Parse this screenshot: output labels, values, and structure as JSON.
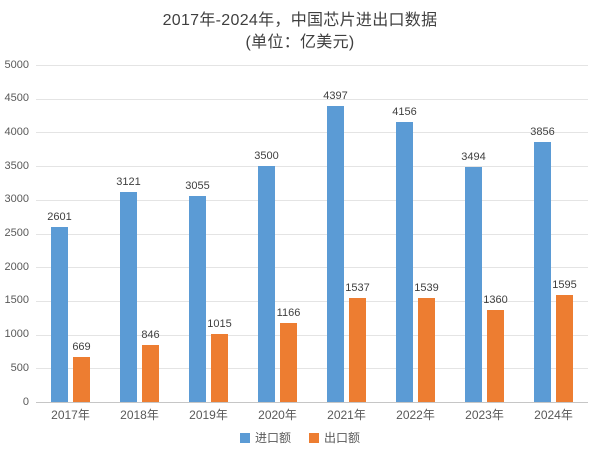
{
  "chart_data": {
    "type": "bar",
    "title": "2017年-2024年，中国芯片进出口数据",
    "subtitle": "(单位：亿美元)",
    "unit": "亿美元",
    "categories": [
      "2017年",
      "2018年",
      "2019年",
      "2020年",
      "2021年",
      "2022年",
      "2023年",
      "2024年"
    ],
    "series": [
      {
        "name": "进口额",
        "color": "#5B9BD5",
        "values": [
          2601,
          3121,
          3055,
          3500,
          4397,
          4156,
          3494,
          3856
        ]
      },
      {
        "name": "出口额",
        "color": "#ED7D31",
        "values": [
          669,
          846,
          1015,
          1166,
          1537,
          1539,
          1360,
          1595
        ]
      }
    ],
    "ylim": [
      0,
      5000
    ],
    "y_tick_step": 500,
    "grid": true,
    "legend_position": "bottom",
    "value_labels": true
  },
  "colors": {
    "import_blue": "#5B9BD5",
    "export_orange": "#ED7D31",
    "gridline": "#E4E4E4",
    "axis_line": "#C6C6C6",
    "axis_text": "#595959",
    "title_text": "#3F3F3F"
  }
}
